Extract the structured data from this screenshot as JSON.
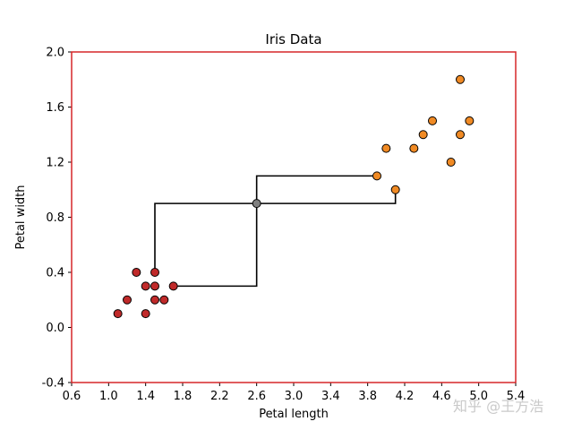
{
  "chart_data": {
    "type": "scatter",
    "title": "Iris Data",
    "xlabel": "Petal length",
    "ylabel": "Petal width",
    "xlim": [
      0.6,
      5.4
    ],
    "ylim": [
      -0.4,
      2.0
    ],
    "xticks": [
      "0.6",
      "1.0",
      "1.4",
      "1.8",
      "2.2",
      "2.6",
      "3.0",
      "3.4",
      "3.8",
      "4.2",
      "4.6",
      "5.0",
      "5.4"
    ],
    "yticks": [
      "-0.4",
      "0.0",
      "0.4",
      "0.8",
      "1.2",
      "1.6",
      "2.0"
    ],
    "frame_color": "#d62728",
    "series": [
      {
        "color": "#c02a2a",
        "points": [
          [
            1.1,
            0.1
          ],
          [
            1.2,
            0.2
          ],
          [
            1.3,
            0.4
          ],
          [
            1.4,
            0.3
          ],
          [
            1.4,
            0.1
          ],
          [
            1.5,
            0.4
          ],
          [
            1.5,
            0.3
          ],
          [
            1.5,
            0.2
          ],
          [
            1.6,
            0.2
          ],
          [
            1.7,
            0.3
          ]
        ]
      },
      {
        "color": "#f08a24",
        "points": [
          [
            3.9,
            1.1
          ],
          [
            4.0,
            1.3
          ],
          [
            4.1,
            1.0
          ],
          [
            4.3,
            1.3
          ],
          [
            4.4,
            1.4
          ],
          [
            4.5,
            1.5
          ],
          [
            4.7,
            1.2
          ],
          [
            4.8,
            1.8
          ],
          [
            4.8,
            1.4
          ],
          [
            4.9,
            1.5
          ]
        ]
      },
      {
        "color": "#808080",
        "points": [
          [
            2.6,
            0.9
          ]
        ]
      }
    ],
    "tree": {
      "root": [
        2.6,
        0.9
      ],
      "left": [
        1.5,
        0.4
      ],
      "left_children": [
        [
          1.5,
          0.4
        ],
        [
          1.7,
          0.3
        ]
      ],
      "right": [
        4.1,
        1.0
      ],
      "right_children": [
        [
          3.9,
          1.1
        ],
        [
          4.1,
          1.0
        ]
      ]
    }
  },
  "watermark": "知乎 @王方浩"
}
